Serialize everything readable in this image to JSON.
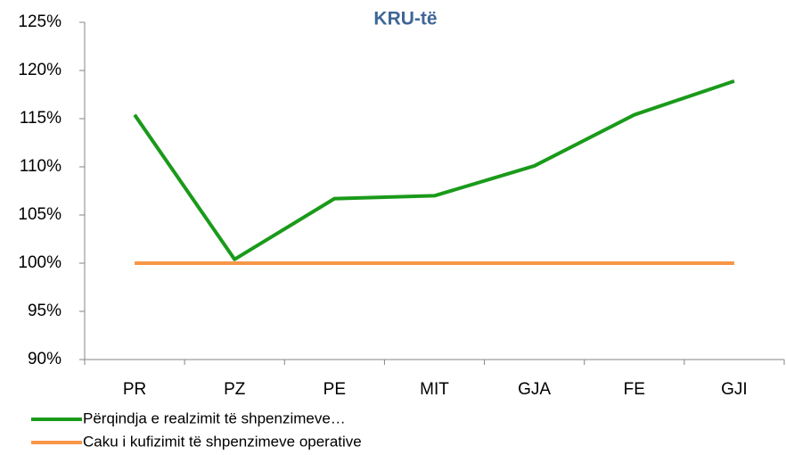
{
  "chart_data": {
    "type": "line",
    "title": "KRU-të",
    "categories": [
      "PR",
      "PZ",
      "PE",
      "MIT",
      "GJA",
      "FE",
      "GJI"
    ],
    "series": [
      {
        "name": "Përqindja e realzimit të shpenzimeve…",
        "color": "#1a9a1a",
        "values": [
          115.4,
          100.4,
          106.7,
          107,
          110.1,
          115.4,
          118.9
        ]
      },
      {
        "name": "Caku i kufizimit të shpenzimeve operative",
        "color": "#f79646",
        "values": [
          100,
          100,
          100,
          100,
          100,
          100,
          100
        ]
      }
    ],
    "ylim": [
      90,
      125
    ],
    "yticks": [
      {
        "value": 90,
        "label": "90%"
      },
      {
        "value": 95,
        "label": "95%"
      },
      {
        "value": 100,
        "label": "100%"
      },
      {
        "value": 105,
        "label": "105%"
      },
      {
        "value": 110,
        "label": "110%"
      },
      {
        "value": 115,
        "label": "115%"
      },
      {
        "value": 120,
        "label": "120%"
      },
      {
        "value": 125,
        "label": "125%"
      }
    ],
    "grid": false,
    "legend": "bottom"
  }
}
